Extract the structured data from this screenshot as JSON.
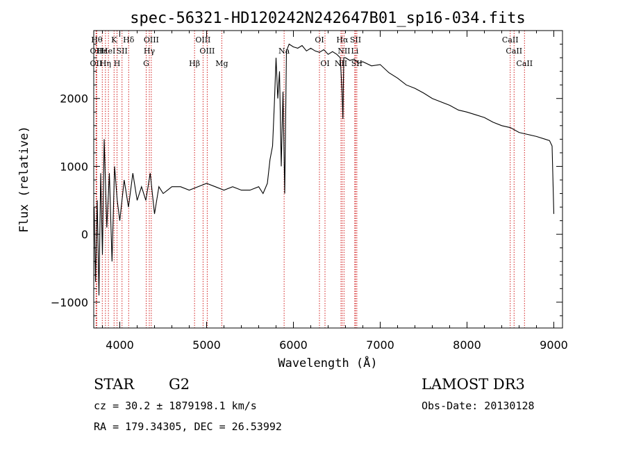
{
  "chart_data": {
    "type": "line",
    "title": "spec-56321-HD120242N242647B01_sp16-034.fits",
    "xlabel": "Wavelength (Å)",
    "ylabel": "Flux (relative)",
    "xlim": [
      3700,
      9100
    ],
    "ylim": [
      -1380,
      3000
    ],
    "xticks": [
      4000,
      5000,
      6000,
      7000,
      8000,
      9000
    ],
    "yticks": [
      -1000,
      0,
      1000,
      2000
    ],
    "series": [
      {
        "x": [
          3705,
          3720,
          3740,
          3760,
          3780,
          3800,
          3820,
          3850,
          3880,
          3910,
          3940,
          3970,
          4000,
          4050,
          4100,
          4150,
          4200,
          4250,
          4300,
          4350,
          4400,
          4450,
          4500,
          4550,
          4600,
          4700,
          4800,
          4900,
          5000,
          5100,
          5200,
          5300,
          5400,
          5500,
          5600,
          5650,
          5700,
          5730,
          5760,
          5780,
          5800,
          5820,
          5840,
          5860,
          5880,
          5900,
          5920,
          5950,
          6000,
          6050,
          6100,
          6150,
          6200,
          6250,
          6300,
          6350,
          6400,
          6450,
          6500,
          6540,
          6560,
          6570,
          6580,
          6600,
          6650,
          6700,
          6750,
          6800,
          6900,
          7000,
          7100,
          7200,
          7300,
          7400,
          7500,
          7600,
          7700,
          7800,
          7900,
          8000,
          8100,
          8200,
          8300,
          8400,
          8500,
          8600,
          8700,
          8800,
          8900,
          8950,
          8980,
          9000
        ],
        "y": [
          400,
          -700,
          500,
          -900,
          900,
          -300,
          1400,
          100,
          900,
          -400,
          1000,
          500,
          200,
          800,
          400,
          900,
          500,
          700,
          500,
          900,
          300,
          700,
          600,
          650,
          700,
          700,
          650,
          700,
          750,
          700,
          650,
          700,
          650,
          650,
          700,
          600,
          750,
          1100,
          1300,
          1900,
          2600,
          2000,
          2400,
          1000,
          2100,
          600,
          2700,
          2800,
          2760,
          2740,
          2780,
          2700,
          2740,
          2700,
          2680,
          2720,
          2650,
          2690,
          2650,
          2600,
          2100,
          1700,
          2600,
          2600,
          2560,
          2580,
          2520,
          2540,
          2480,
          2500,
          2380,
          2300,
          2200,
          2150,
          2080,
          2000,
          1950,
          1900,
          1830,
          1800,
          1760,
          1720,
          1650,
          1600,
          1570,
          1500,
          1470,
          1440,
          1400,
          1380,
          1300,
          300
        ]
      }
    ],
    "line_markers": [
      {
        "wave": 3735,
        "label": "Hθ",
        "row": 0
      },
      {
        "wave": 3727,
        "label": "OII",
        "row": 1
      },
      {
        "wave": 3727,
        "label": "OII",
        "row": 2
      },
      {
        "wave": 3798,
        "label": "Hε",
        "row": 1
      },
      {
        "wave": 3835,
        "label": "Hη",
        "row": 2
      },
      {
        "wave": 3869,
        "label": "HeI",
        "row": 1
      },
      {
        "wave": 3934,
        "label": "K",
        "row": 0
      },
      {
        "wave": 3968,
        "label": "H",
        "row": 2
      },
      {
        "wave": 4026,
        "label": "SII",
        "row": 1
      },
      {
        "wave": 4102,
        "label": "Hδ",
        "row": 0
      },
      {
        "wave": 4340,
        "label": "Hγ",
        "row": 1
      },
      {
        "wave": 4304,
        "label": "G",
        "row": 2
      },
      {
        "wave": 4363,
        "label": "OIII",
        "row": 0
      },
      {
        "wave": 4861,
        "label": "Hβ",
        "row": 2
      },
      {
        "wave": 4959,
        "label": "OIII",
        "row": 0
      },
      {
        "wave": 5007,
        "label": "OIII",
        "row": 1
      },
      {
        "wave": 5175,
        "label": "Mg",
        "row": 2
      },
      {
        "wave": 5893,
        "label": "Na",
        "row": 1
      },
      {
        "wave": 6300,
        "label": "OI",
        "row": 0
      },
      {
        "wave": 6364,
        "label": "OI",
        "row": 2
      },
      {
        "wave": 6548,
        "label": "NII",
        "row": 2
      },
      {
        "wave": 6563,
        "label": "Hα",
        "row": 0
      },
      {
        "wave": 6583,
        "label": "NII",
        "row": 1
      },
      {
        "wave": 6707,
        "label": "Li",
        "row": 1
      },
      {
        "wave": 6716,
        "label": "SII",
        "row": 0
      },
      {
        "wave": 6731,
        "label": "SII",
        "row": 2
      },
      {
        "wave": 8498,
        "label": "CaII",
        "row": 0
      },
      {
        "wave": 8542,
        "label": "CaII",
        "row": 1
      },
      {
        "wave": 8662,
        "label": "CaII",
        "row": 2
      }
    ],
    "grid": false,
    "legend": "none"
  },
  "footer": {
    "object_class": "STAR",
    "subclass": "G2",
    "survey": "LAMOST DR3",
    "cz": "cz = 30.2 ± 1879198.1 km/s",
    "obs_date": "Obs-Date: 20130128",
    "coords": "RA = 179.34305, DEC =  26.53992"
  },
  "colors": {
    "spectrum": "#000000",
    "line_markers": "#cc0000",
    "background": "#ffffff"
  }
}
